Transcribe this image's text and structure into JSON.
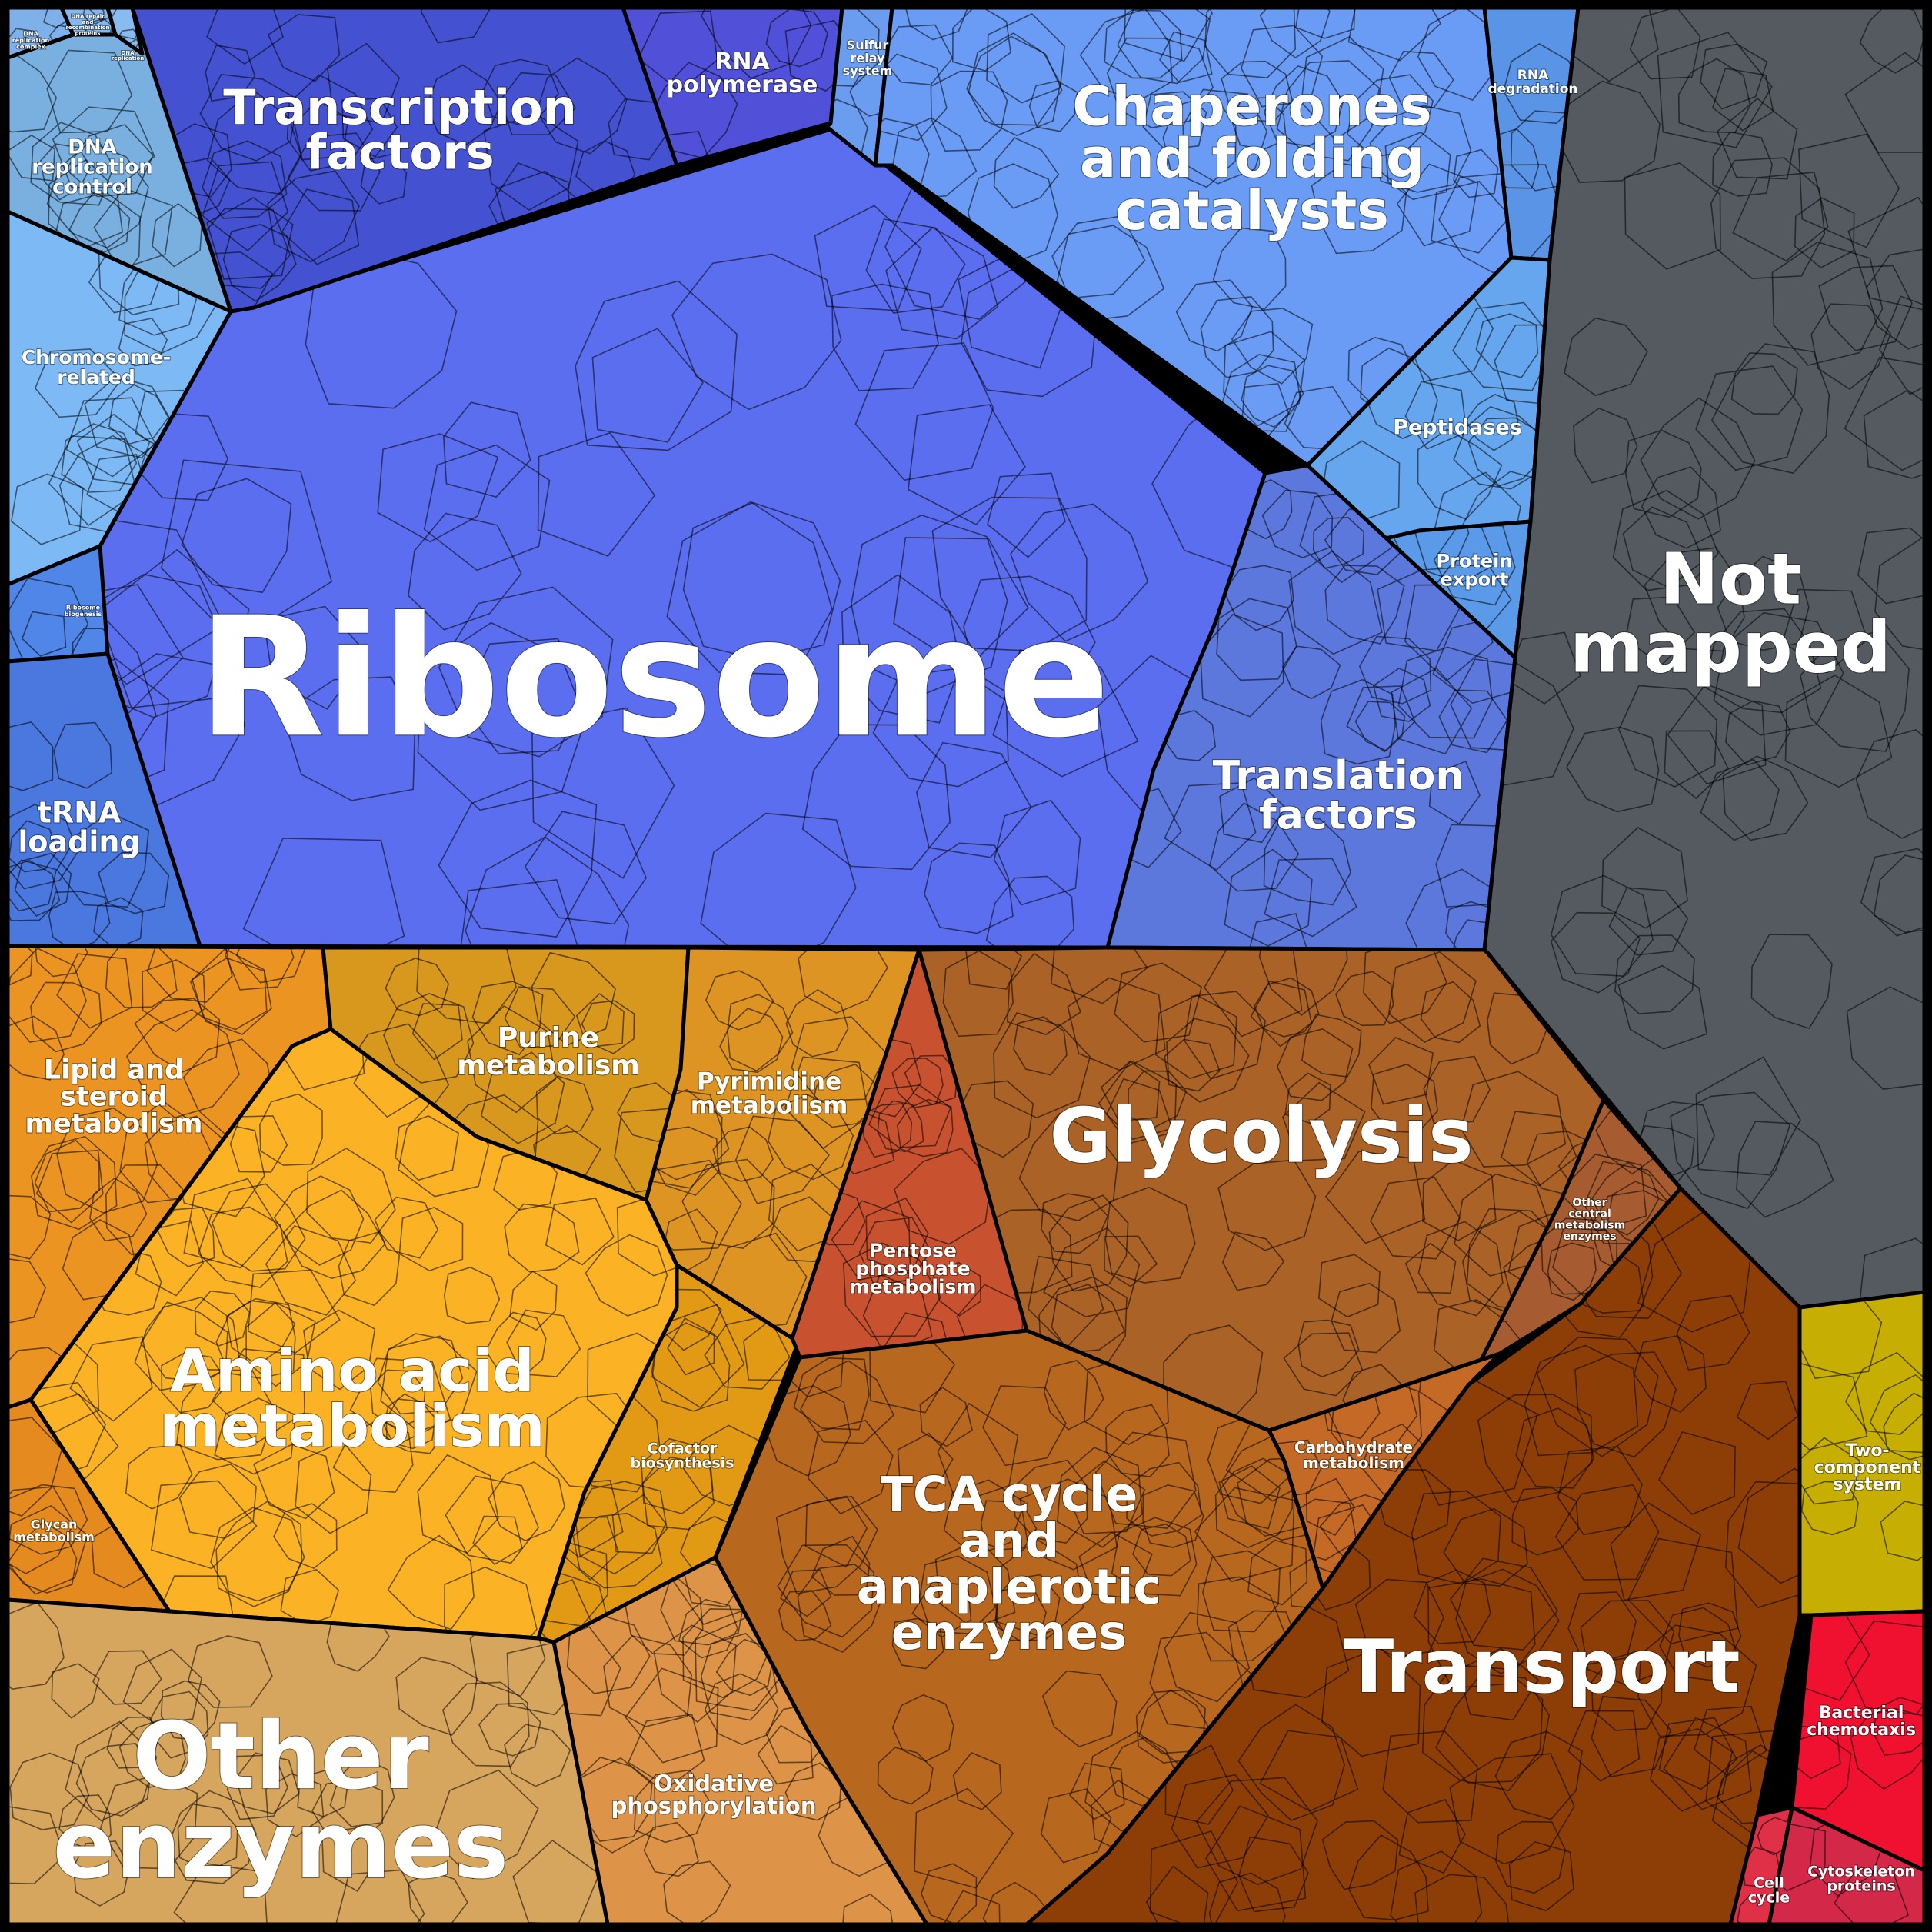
{
  "title": "",
  "categories": [
    {
      "id": "ribosome",
      "label": [
        "Ribosome"
      ],
      "color": "#5b6ef0"
    },
    {
      "id": "transcription-factors",
      "label": [
        "Transcription",
        "factors"
      ],
      "color": "#4452d2"
    },
    {
      "id": "rna-polymerase",
      "label": [
        "RNA",
        "polymerase"
      ],
      "color": "#5050d8"
    },
    {
      "id": "sulfur-relay",
      "label": [
        "Sulfur",
        "relay",
        "system"
      ],
      "color": "#6a9cf0"
    },
    {
      "id": "chaperones",
      "label": [
        "Chaperones",
        "and folding",
        "catalysts"
      ],
      "color": "#6a9cf5"
    },
    {
      "id": "rna-degradation",
      "label": [
        "RNA",
        "degradation"
      ],
      "color": "#5a94e6"
    },
    {
      "id": "peptidases",
      "label": [
        "Peptidases"
      ],
      "color": "#66a6ee"
    },
    {
      "id": "protein-export",
      "label": [
        "Protein",
        "export"
      ],
      "color": "#5a9ae8"
    },
    {
      "id": "translation-factors",
      "label": [
        "Translation",
        "factors"
      ],
      "color": "#5c78dc"
    },
    {
      "id": "dna-replication-control",
      "label": [
        "DNA",
        "replication",
        "control"
      ],
      "color": "#7ab0e0"
    },
    {
      "id": "dna-replication-complex",
      "label": [
        "DNA",
        "replication",
        "complex"
      ],
      "color": "#7eb0ea"
    },
    {
      "id": "dna-repair",
      "label": [
        "DNA repair",
        "and",
        "recombination",
        "proteins"
      ],
      "color": "#84b8ee"
    },
    {
      "id": "dna-replication",
      "label": [
        "DNA",
        "replication"
      ],
      "color": "#88bcf0"
    },
    {
      "id": "chromosome-related",
      "label": [
        "Chromosome-",
        "related"
      ],
      "color": "#7dbaf5"
    },
    {
      "id": "ribosome-biogenesis",
      "label": [
        "Ribosome",
        "biogenesis"
      ],
      "color": "#4f86e8"
    },
    {
      "id": "trna-loading",
      "label": [
        "tRNA",
        "loading"
      ],
      "color": "#4a78de"
    },
    {
      "id": "not-mapped",
      "label": [
        "Not",
        "mapped"
      ],
      "color": "#545a60"
    },
    {
      "id": "lipid-steroid",
      "label": [
        "Lipid and",
        "steroid",
        "metabolism"
      ],
      "color": "#ec9422"
    },
    {
      "id": "purine",
      "label": [
        "Purine",
        "metabolism"
      ],
      "color": "#d8981e"
    },
    {
      "id": "pyrimidine",
      "label": [
        "Pyrimidine",
        "metabolism"
      ],
      "color": "#de9422"
    },
    {
      "id": "amino-acid",
      "label": [
        "Amino acid",
        "metabolism"
      ],
      "color": "#fbb325"
    },
    {
      "id": "glycan",
      "label": [
        "Glycan",
        "metabolism"
      ],
      "color": "#e58a1e"
    },
    {
      "id": "cofactor",
      "label": [
        "Cofactor",
        "biosynthesis"
      ],
      "color": "#e29a14"
    },
    {
      "id": "pentose-phosphate",
      "label": [
        "Pentose",
        "phosphate",
        "metabolism"
      ],
      "color": "#c85230"
    },
    {
      "id": "glycolysis",
      "label": [
        "Glycolysis"
      ],
      "color": "#aa6226"
    },
    {
      "id": "other-central",
      "label": [
        "Other",
        "central",
        "metabolism",
        "enzymes"
      ],
      "color": "#a65c30"
    },
    {
      "id": "carbohydrate",
      "label": [
        "Carbohydrate",
        "metabolism"
      ],
      "color": "#c46a26"
    },
    {
      "id": "tca-cycle",
      "label": [
        "TCA cycle",
        "and",
        "anaplerotic",
        "enzymes"
      ],
      "color": "#b8681e"
    },
    {
      "id": "oxidative-phosphorylation",
      "label": [
        "Oxidative",
        "phosphorylation"
      ],
      "color": "#de9448"
    },
    {
      "id": "other-enzymes",
      "label": [
        "Other",
        "enzymes"
      ],
      "color": "#d6a55e"
    },
    {
      "id": "transport",
      "label": [
        "Transport"
      ],
      "color": "#8c3e06"
    },
    {
      "id": "two-component",
      "label": [
        "Two-",
        "component",
        "system"
      ],
      "color": "#c6ae02"
    },
    {
      "id": "bacterial-chemotaxis",
      "label": [
        "Bacterial",
        "chemotaxis"
      ],
      "color": "#f01030"
    },
    {
      "id": "cytoskeleton",
      "label": [
        "Cytoskeleton",
        "proteins"
      ],
      "color": "#d42848"
    },
    {
      "id": "cell-cycle",
      "label": [
        "Cell",
        "cycle"
      ],
      "color": "#e03048"
    }
  ]
}
